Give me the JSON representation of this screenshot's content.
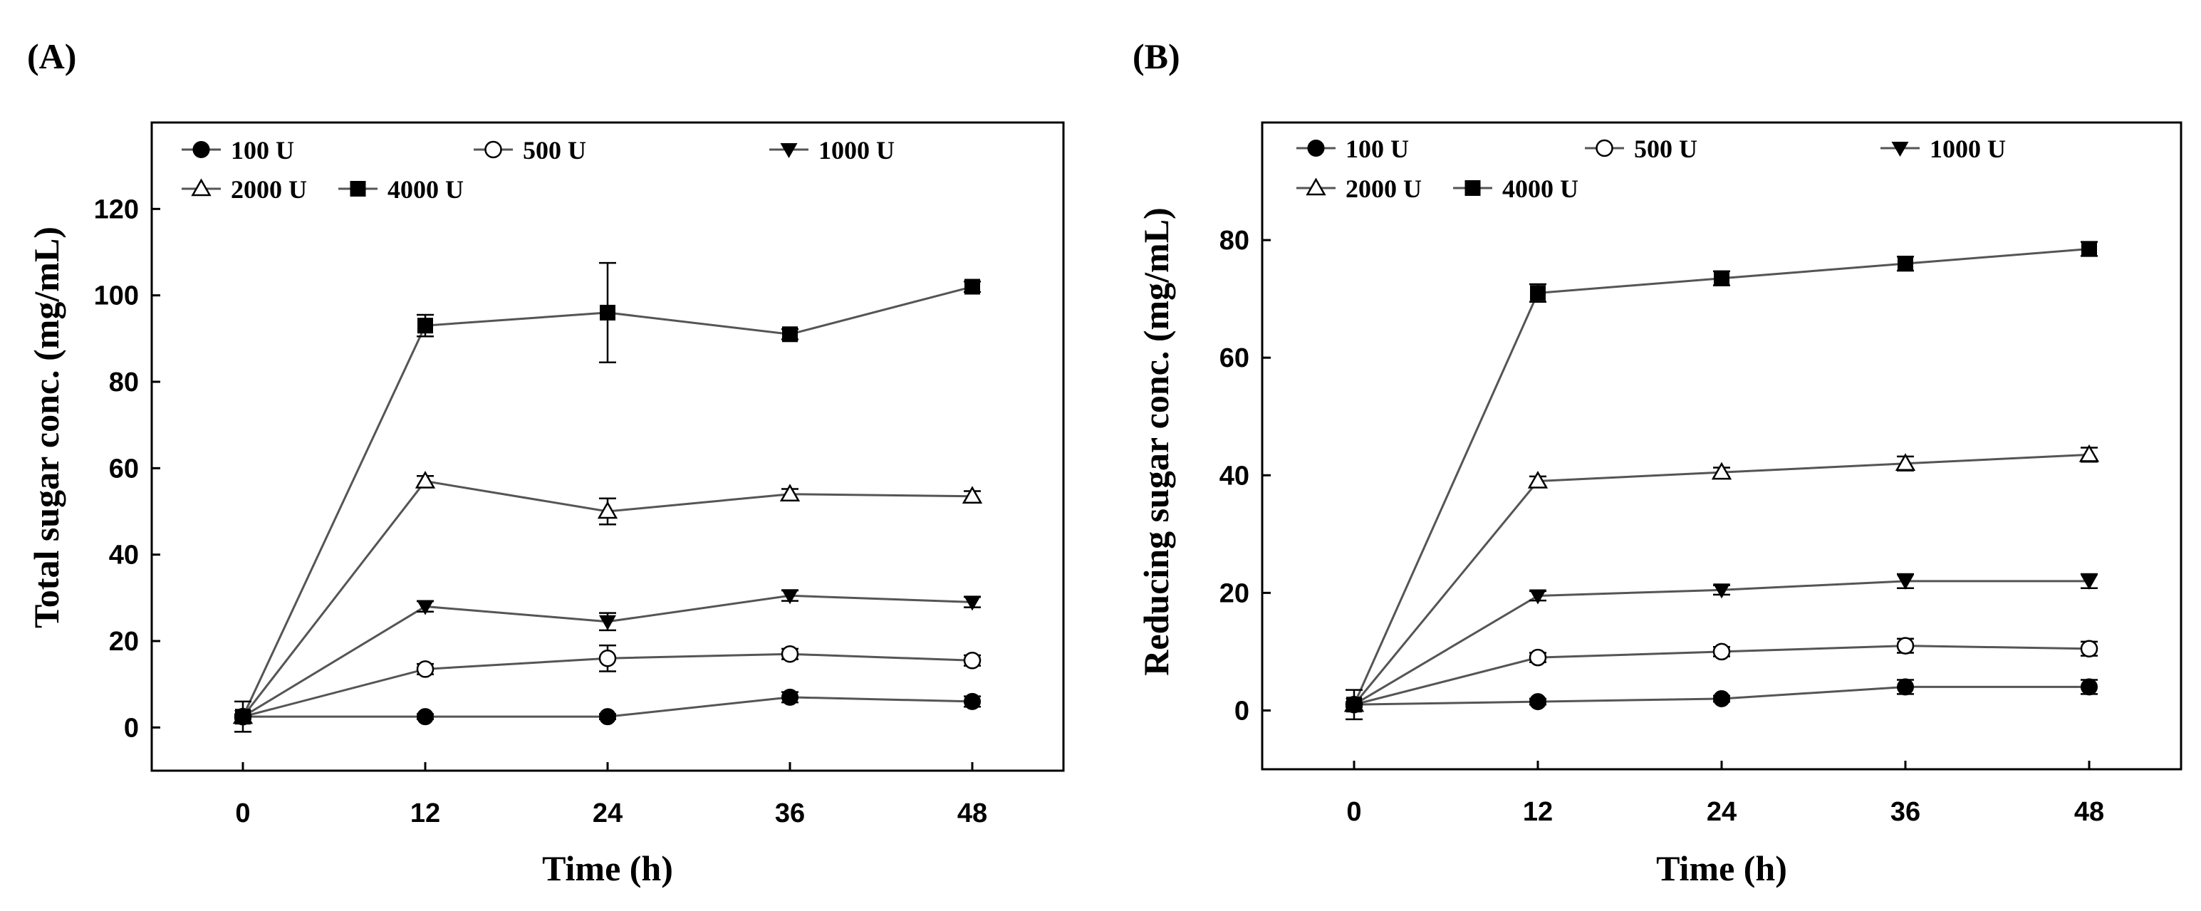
{
  "chart_data": [
    {
      "panel_label": "(A)",
      "type": "line",
      "xlabel": "Time (h)",
      "ylabel": "Total sugar conc. (mg/mL)",
      "x": [
        0,
        12,
        24,
        36,
        48
      ],
      "xlim": [
        -6,
        54
      ],
      "ylim": [
        -10,
        140
      ],
      "xticks": [
        0,
        12,
        24,
        36,
        48
      ],
      "yticks": [
        0,
        20,
        40,
        60,
        80,
        100,
        120
      ],
      "grid": false,
      "legend_position": "top",
      "series": [
        {
          "name": "100 U",
          "marker": "filled-circle",
          "values": [
            2.5,
            2.5,
            2.5,
            7,
            6
          ],
          "errors": [
            0.5,
            0.6,
            0.6,
            1.2,
            1.2
          ]
        },
        {
          "name": "500 U",
          "marker": "open-circle",
          "values": [
            2.5,
            13.5,
            16,
            17,
            15.5
          ],
          "errors": [
            0.5,
            1.2,
            3,
            1.2,
            1.2
          ]
        },
        {
          "name": "1000 U",
          "marker": "filled-triangle-down",
          "values": [
            2.5,
            28,
            24.5,
            30.5,
            29
          ],
          "errors": [
            0.5,
            1.2,
            2,
            1.2,
            1.2
          ]
        },
        {
          "name": "2000 U",
          "marker": "open-triangle-up",
          "values": [
            2.5,
            57,
            50,
            54,
            53.5
          ],
          "errors": [
            0.5,
            1.2,
            3,
            1.2,
            1.2
          ]
        },
        {
          "name": "4000 U",
          "marker": "filled-square",
          "values": [
            2.5,
            93,
            96,
            91,
            102
          ],
          "errors": [
            3.5,
            2.5,
            11.5,
            1.2,
            1.2
          ]
        }
      ]
    },
    {
      "panel_label": "(B)",
      "type": "line",
      "xlabel": "Time (h)",
      "ylabel": "Reducing sugar conc. (mg/mL)",
      "x": [
        0,
        12,
        24,
        36,
        48
      ],
      "xlim": [
        -6,
        54
      ],
      "ylim": [
        -10,
        100
      ],
      "xticks": [
        0,
        12,
        24,
        36,
        48
      ],
      "yticks": [
        0,
        20,
        40,
        60,
        80
      ],
      "grid": false,
      "legend_position": "top",
      "series": [
        {
          "name": "100 U",
          "marker": "filled-circle",
          "values": [
            1,
            1.5,
            2,
            4,
            4
          ],
          "errors": [
            0.4,
            0.5,
            0.5,
            1.2,
            1.2
          ]
        },
        {
          "name": "500 U",
          "marker": "open-circle",
          "values": [
            1,
            9,
            10,
            11,
            10.5
          ],
          "errors": [
            0.4,
            0.8,
            0.8,
            1.2,
            1.2
          ]
        },
        {
          "name": "1000 U",
          "marker": "filled-triangle-down",
          "values": [
            1,
            19.5,
            20.5,
            22,
            22
          ],
          "errors": [
            0.4,
            0.8,
            0.8,
            1.2,
            1.2
          ]
        },
        {
          "name": "2000 U",
          "marker": "open-triangle-up",
          "values": [
            1,
            39,
            40.5,
            42,
            43.5
          ],
          "errors": [
            0.4,
            0.8,
            0.8,
            1.2,
            1.2
          ]
        },
        {
          "name": "4000 U",
          "marker": "filled-square",
          "values": [
            1,
            71,
            73.5,
            76,
            78.5
          ],
          "errors": [
            2.5,
            1.5,
            1.2,
            1.2,
            1.2
          ]
        }
      ]
    }
  ]
}
